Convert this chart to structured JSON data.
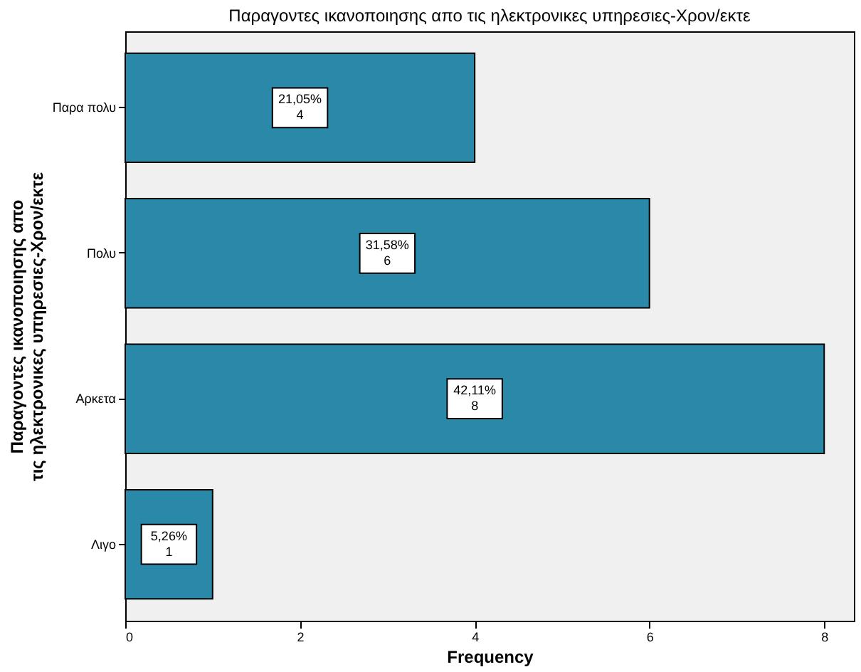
{
  "chart_data": {
    "type": "bar",
    "orientation": "horizontal",
    "title": "Παραγοντες ικανοποιησης απο τις ηλεκτρονικες υπηρεσιες-Χρον/εκτε",
    "xlabel": "Frequency",
    "ylabel": "Παραγοντες ικανοποιησης απο τις ηλεκτρονικες υπηρεσιες-Χρον/εκτε",
    "categories": [
      "Παρα πολυ",
      "Πολυ",
      "Αρκετα",
      "Λιγο"
    ],
    "values": [
      4,
      6,
      8,
      1
    ],
    "value_labels": [
      "21,05%\n4",
      "31,58%\n6",
      "42,11%\n8",
      "5,26%\n1"
    ],
    "color": "#2a89a8",
    "xlim": [
      0,
      8.34
    ],
    "xticks": [
      0,
      2,
      4,
      6,
      8
    ],
    "grid": false
  }
}
